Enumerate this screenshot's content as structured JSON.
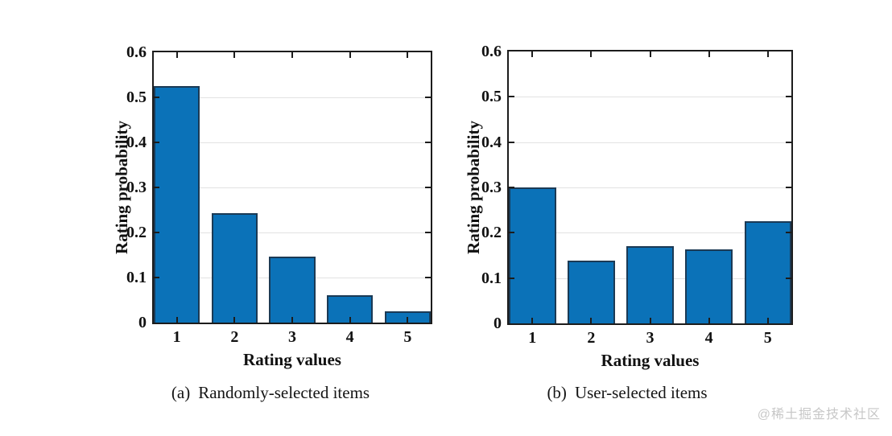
{
  "watermark": "@稀土掘金技术社区",
  "colors": {
    "bar_fill": "#0b72b8",
    "bar_edge": "#1b3a55",
    "axis": "#1c1c1c",
    "grid": "#e2e2e2",
    "watermark": "#c7c7c7"
  },
  "chart_data": [
    {
      "type": "bar",
      "caption_prefix": "(a)",
      "caption_text": "Randomly-selected items",
      "categories": [
        "1",
        "2",
        "3",
        "4",
        "5"
      ],
      "values": [
        0.525,
        0.243,
        0.147,
        0.06,
        0.025
      ],
      "xlabel": "Rating values",
      "ylabel": "Rating probability",
      "ylim": [
        0,
        0.6
      ],
      "yticks": [
        0,
        0.1,
        0.2,
        0.3,
        0.4,
        0.5,
        0.6
      ],
      "grid": true,
      "legend": null
    },
    {
      "type": "bar",
      "caption_prefix": "(b)",
      "caption_text": "User-selected items",
      "categories": [
        "1",
        "2",
        "3",
        "4",
        "5"
      ],
      "values": [
        0.3,
        0.138,
        0.171,
        0.163,
        0.226
      ],
      "xlabel": "Rating values",
      "ylabel": "Rating probability",
      "ylim": [
        0,
        0.6
      ],
      "yticks": [
        0,
        0.1,
        0.2,
        0.3,
        0.4,
        0.5,
        0.6
      ],
      "grid": true,
      "legend": null
    }
  ]
}
